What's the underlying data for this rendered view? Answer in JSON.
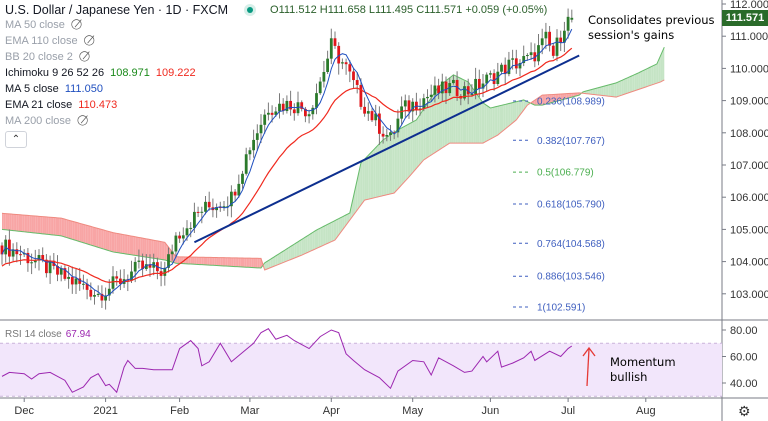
{
  "header": {
    "title": "U.S. Dollar / Japanese Yen · 1D · FXCM",
    "ohlc": "O111.512  H111.658  L111.495  C111.571  +0.059 (+0.05%)"
  },
  "indicators": [
    {
      "label": "MA 50 close",
      "hidden": true
    },
    {
      "label": "EMA 110 close",
      "hidden": true
    },
    {
      "label": "BB 20 close 2",
      "hidden": true
    },
    {
      "label": "Ichimoku 9 26 52 26",
      "v1": "108.971",
      "v2": "109.222"
    },
    {
      "label": "MA 5 close",
      "v1": "111.050"
    },
    {
      "label": "EMA 21 close",
      "v1": "110.473"
    },
    {
      "label": "MA 200 close",
      "hidden": true
    }
  ],
  "annotations": {
    "price_note": [
      "Consolidates previous",
      "session's gains"
    ],
    "rsi_note": [
      "Momentum",
      "bullish"
    ]
  },
  "colors": {
    "up": "#2b7a2b",
    "down": "#e0161b",
    "ma5": "#1f4fbf",
    "ema21": "#f0291e",
    "trend": "#0d2f8f",
    "rsi": "#9c27b0",
    "cloud_up": "#a5d6a7",
    "cloud_down": "#f88"
  },
  "chart_data": {
    "type": "candlestick",
    "title": "U.S. Dollar / Japanese Yen · 1D · FXCM",
    "last_price": "111.571",
    "y_ticks": [
      "112.000",
      "111.000",
      "110.000",
      "109.000",
      "108.000",
      "107.000",
      "106.000",
      "105.000",
      "104.000",
      "103.000"
    ],
    "ylim": [
      102.45,
      112.1
    ],
    "x_ticks": [
      {
        "label": "Dec",
        "day": 6
      },
      {
        "label": "2021",
        "day": 28
      },
      {
        "label": "Feb",
        "day": 48
      },
      {
        "label": "Mar",
        "day": 67
      },
      {
        "label": "Apr",
        "day": 89
      },
      {
        "label": "May",
        "day": 111
      },
      {
        "label": "Jun",
        "day": 132
      },
      {
        "label": "Jul",
        "day": 153
      },
      {
        "label": "Aug",
        "day": 174
      }
    ],
    "close_waypoints": [
      [
        0,
        104.5
      ],
      [
        6,
        104.2
      ],
      [
        17,
        103.5
      ],
      [
        26,
        103.0
      ],
      [
        29,
        103.2
      ],
      [
        37,
        103.8
      ],
      [
        44,
        103.7
      ],
      [
        47,
        104.8
      ],
      [
        54,
        105.6
      ],
      [
        62,
        106.0
      ],
      [
        67,
        107.6
      ],
      [
        72,
        108.8
      ],
      [
        78,
        108.9
      ],
      [
        83,
        108.7
      ],
      [
        86,
        109.6
      ],
      [
        89,
        110.7
      ],
      [
        93,
        110.0
      ],
      [
        97,
        109.0
      ],
      [
        102,
        108.2
      ],
      [
        105,
        107.8
      ],
      [
        108,
        108.7
      ],
      [
        116,
        109.2
      ],
      [
        121,
        109.4
      ],
      [
        126,
        109.3
      ],
      [
        132,
        109.7
      ],
      [
        137,
        110.1
      ],
      [
        143,
        110.3
      ],
      [
        147,
        110.9
      ],
      [
        149,
        110.4
      ],
      [
        152,
        111.4
      ],
      [
        154,
        111.571
      ]
    ],
    "ichimoku_span_a": [
      [
        0,
        105.0
      ],
      [
        16,
        104.8
      ],
      [
        30,
        104.3
      ],
      [
        44,
        104.05
      ],
      [
        47,
        103.95
      ],
      [
        70,
        103.8
      ],
      [
        71,
        103.96
      ],
      [
        85,
        104.98
      ],
      [
        94,
        105.51
      ],
      [
        97,
        107.06
      ],
      [
        103,
        107.78
      ],
      [
        107,
        108.09
      ],
      [
        112,
        108.4
      ],
      [
        118,
        109.43
      ],
      [
        122,
        109.8
      ],
      [
        126,
        109.58
      ],
      [
        130,
        108.93
      ],
      [
        132,
        108.77
      ],
      [
        141,
        109.02
      ],
      [
        144,
        108.86
      ],
      [
        146,
        108.86
      ],
      [
        156,
        109.17
      ],
      [
        157,
        109.27
      ],
      [
        166,
        109.55
      ],
      [
        172,
        109.86
      ],
      [
        177,
        110.14
      ],
      [
        179,
        110.66
      ]
    ],
    "ichimoku_span_b": [
      [
        0,
        105.5
      ],
      [
        16,
        105.35
      ],
      [
        30,
        104.9
      ],
      [
        44,
        104.6
      ],
      [
        47,
        104.15
      ],
      [
        70,
        104.1
      ],
      [
        71,
        103.74
      ],
      [
        81,
        104.2
      ],
      [
        90,
        104.67
      ],
      [
        94,
        105.29
      ],
      [
        98,
        105.91
      ],
      [
        106,
        106.13
      ],
      [
        110,
        106.63
      ],
      [
        114,
        107.16
      ],
      [
        121,
        107.68
      ],
      [
        130,
        107.68
      ],
      [
        134,
        107.93
      ],
      [
        139,
        108.4
      ],
      [
        142,
        108.86
      ],
      [
        146,
        109.17
      ],
      [
        156,
        109.24
      ],
      [
        166,
        109.11
      ],
      [
        178,
        109.58
      ],
      [
        179,
        109.64
      ]
    ],
    "trendline": [
      [
        52,
        104.6
      ],
      [
        156,
        110.4
      ]
    ],
    "fib_levels": [
      {
        "label": "0.236(108.989)",
        "ratio": 0.236,
        "price": 108.989
      },
      {
        "label": "0.382(107.767)",
        "ratio": 0.382,
        "price": 107.767
      },
      {
        "label": "0.5(106.779)",
        "ratio": 0.5,
        "price": 106.779
      },
      {
        "label": "0.618(105.790)",
        "ratio": 0.618,
        "price": 105.79
      },
      {
        "label": "0.764(104.568)",
        "ratio": 0.764,
        "price": 104.568
      },
      {
        "label": "0.886(103.546)",
        "ratio": 0.886,
        "price": 103.546
      },
      {
        "label": "1(102.591)",
        "ratio": 1,
        "price": 102.591
      }
    ],
    "rsi": {
      "label": "RSI 14 close",
      "value": "67.94",
      "y_ticks": [
        "80.00",
        "60.00",
        "40.00"
      ],
      "band": [
        30,
        70
      ],
      "points": [
        [
          0,
          45
        ],
        [
          2,
          48
        ],
        [
          6,
          47
        ],
        [
          8,
          43
        ],
        [
          10,
          47
        ],
        [
          13,
          48
        ],
        [
          17,
          42
        ],
        [
          19,
          33
        ],
        [
          22,
          37
        ],
        [
          24,
          44
        ],
        [
          26,
          47
        ],
        [
          28,
          38
        ],
        [
          29,
          39
        ],
        [
          31,
          33
        ],
        [
          33,
          52
        ],
        [
          34,
          57
        ],
        [
          36,
          51
        ],
        [
          38,
          51
        ],
        [
          41,
          50
        ],
        [
          44,
          50
        ],
        [
          46,
          50
        ],
        [
          48,
          66
        ],
        [
          51,
          72
        ],
        [
          53,
          66
        ],
        [
          54,
          53
        ],
        [
          56,
          56
        ],
        [
          59,
          70
        ],
        [
          62,
          56
        ],
        [
          65,
          63
        ],
        [
          68,
          70
        ],
        [
          70,
          78
        ],
        [
          72,
          81
        ],
        [
          74,
          73
        ],
        [
          77,
          76
        ],
        [
          79,
          72
        ],
        [
          83,
          66
        ],
        [
          86,
          75
        ],
        [
          89,
          80
        ],
        [
          91,
          78
        ],
        [
          93,
          62
        ],
        [
          95,
          57
        ],
        [
          98,
          50
        ],
        [
          102,
          44
        ],
        [
          105,
          36
        ],
        [
          107,
          49
        ],
        [
          111,
          57
        ],
        [
          114,
          56
        ],
        [
          116,
          46
        ],
        [
          118,
          59
        ],
        [
          122,
          53
        ],
        [
          125,
          48
        ],
        [
          127,
          49
        ],
        [
          130,
          60
        ],
        [
          131,
          56
        ],
        [
          134,
          64
        ],
        [
          135,
          52
        ],
        [
          138,
          55
        ],
        [
          141,
          59
        ],
        [
          143,
          64
        ],
        [
          144,
          57
        ],
        [
          148,
          64
        ],
        [
          151,
          60
        ],
        [
          153,
          66
        ],
        [
          154,
          67.94
        ]
      ]
    }
  }
}
